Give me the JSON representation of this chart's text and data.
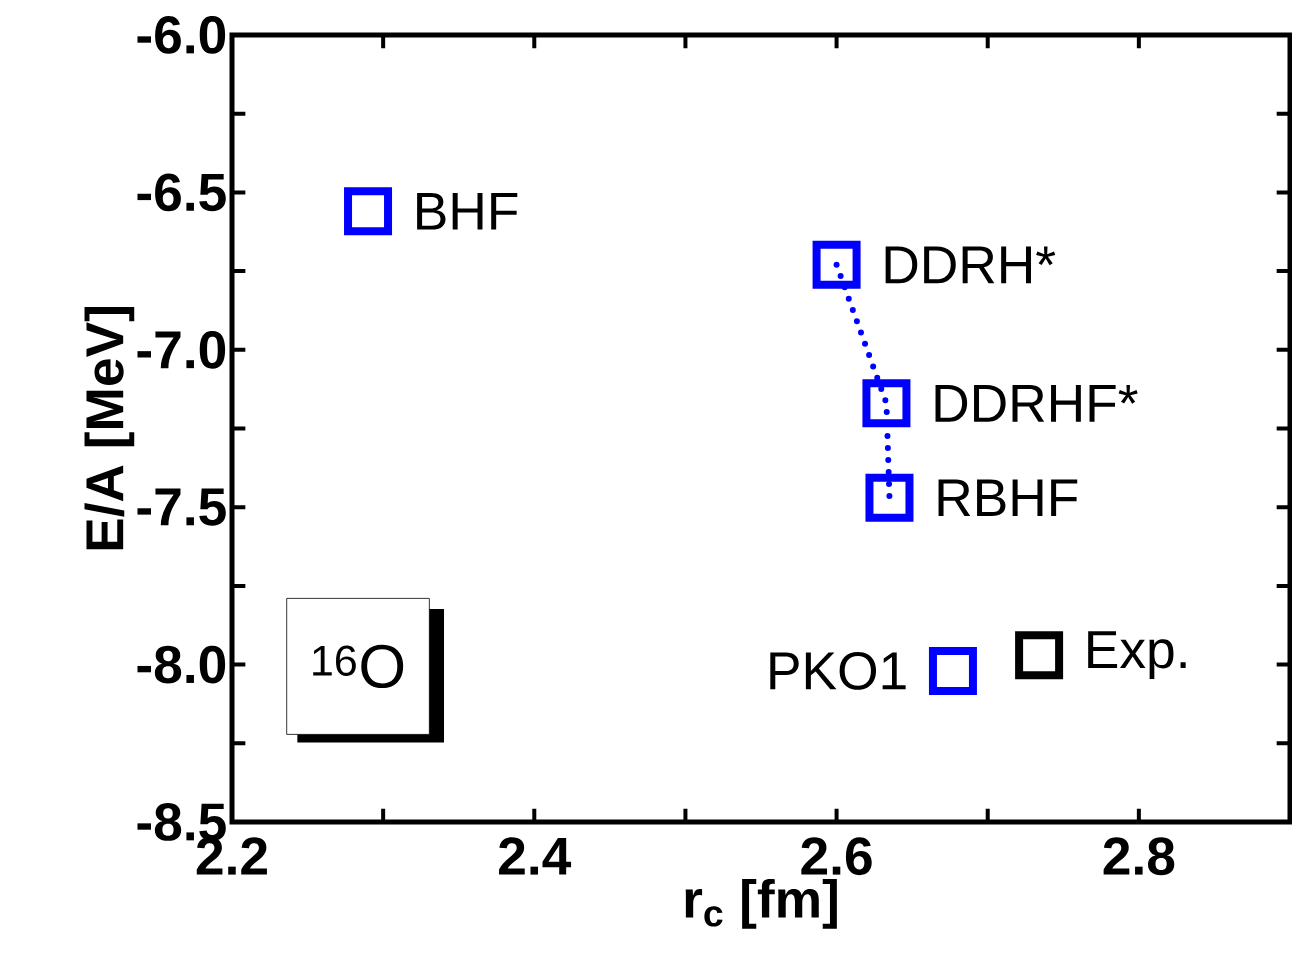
{
  "chart_data": {
    "type": "scatter",
    "xlabel": "r$_{c}$ [fm]",
    "ylabel": "E/A [MeV]",
    "xlim": [
      2.2,
      2.9
    ],
    "ylim": [
      -8.5,
      -6.0
    ],
    "xticks": [
      2.2,
      {
        "value": 2.3,
        "label": null
      },
      2.4,
      {
        "value": 2.5,
        "label": null
      },
      2.6,
      {
        "value": 2.7,
        "label": null
      },
      2.8
    ],
    "yticks": [
      {
        "value": -8.5,
        "label": "-8.5"
      },
      {
        "value": -8.25,
        "label": null
      },
      {
        "value": -8.0,
        "label": "-8.0"
      },
      {
        "value": -7.75,
        "label": null
      },
      {
        "value": -7.5,
        "label": "-7.5"
      },
      {
        "value": -7.25,
        "label": null
      },
      {
        "value": -7.0,
        "label": "-7.0"
      },
      {
        "value": -6.75,
        "label": null
      },
      {
        "value": -6.5,
        "label": "-6.5"
      },
      {
        "value": -6.25,
        "label": null
      },
      {
        "value": -6.0,
        "label": "-6.0"
      }
    ],
    "marker": "square",
    "annotations": [
      "$^{16}$O"
    ],
    "series": [
      {
        "type": "line",
        "color": "#0000ff",
        "x": [
          2.6,
          2.633,
          2.635
        ],
        "values": [
          -6.73,
          -7.17,
          -7.47
        ],
        "line_style": "dotted",
        "marker": "none"
      },
      {
        "name": "BHF",
        "color": "#0000ff",
        "x": [
          2.29
        ],
        "values": [
          -6.56
        ]
      },
      {
        "name": "DDRH*",
        "color": "#0000ff",
        "x": [
          2.6
        ],
        "values": [
          -6.73
        ]
      },
      {
        "name": "DDRHF*",
        "color": "#0000ff",
        "x": [
          2.633
        ],
        "values": [
          -7.17
        ]
      },
      {
        "name": "RBHF",
        "color": "#0000ff",
        "x": [
          2.635
        ],
        "values": [
          -7.47
        ]
      },
      {
        "name": "PKO1",
        "color": "#0000ff",
        "x": [
          2.677
        ],
        "values": [
          -8.02
        ]
      },
      {
        "name": "Exp.",
        "color": "#000000",
        "x": [
          2.734
        ],
        "values": [
          -7.97
        ]
      }
    ]
  }
}
